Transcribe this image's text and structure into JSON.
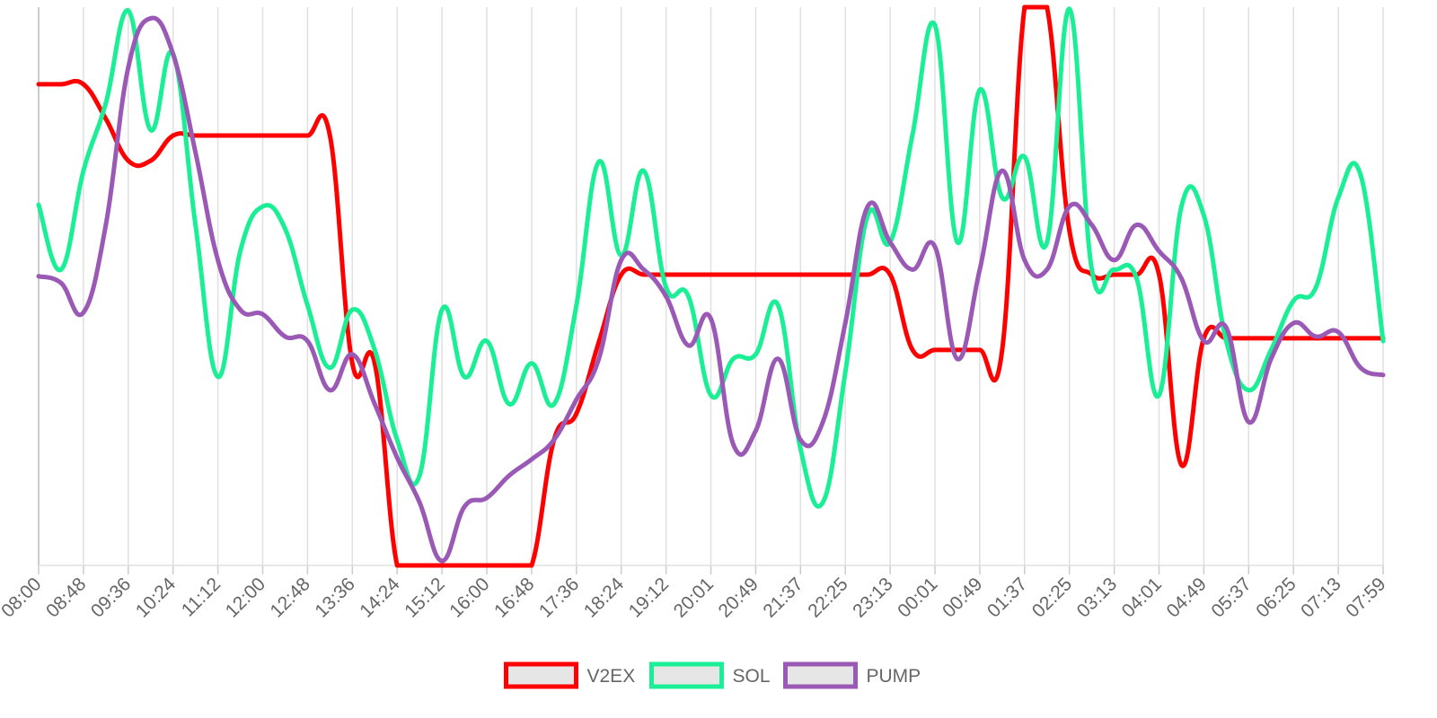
{
  "chart_data": {
    "type": "line",
    "categories": [
      "08:00",
      null,
      "08:48",
      null,
      "09:36",
      null,
      "10:24",
      null,
      "11:12",
      null,
      "12:00",
      null,
      "12:48",
      null,
      "13:36",
      null,
      "14:24",
      null,
      "15:12",
      null,
      "16:00",
      null,
      "16:48",
      null,
      "17:36",
      null,
      "18:24",
      null,
      "19:12",
      null,
      "20:01",
      null,
      "20:49",
      null,
      "21:37",
      null,
      "22:25",
      null,
      "23:13",
      null,
      "00:01",
      null,
      "00:49",
      null,
      "01:37",
      null,
      "02:25",
      null,
      "03:13",
      null,
      "04:01",
      null,
      "04:49",
      null,
      "05:37",
      null,
      "06:25",
      null,
      "07:13",
      null,
      "07:59"
    ],
    "series": [
      {
        "name": "V2EX",
        "color": "#ff0000",
        "values": [
          86.2,
          86.2,
          86.2,
          80,
          72.5,
          72.5,
          77,
          77,
          77,
          77,
          77,
          77,
          77,
          77,
          36.2,
          36.2,
          0,
          0,
          0,
          0,
          0,
          0,
          0,
          22.5,
          27.2,
          40,
          52.1,
          52.1,
          52.1,
          52.1,
          52.1,
          52.1,
          52.1,
          52.1,
          52.1,
          52.1,
          52.1,
          52.1,
          52.1,
          38.6,
          38.6,
          38.6,
          38.6,
          38.6,
          100,
          100,
          60,
          52.1,
          52.1,
          52.1,
          52.1,
          18,
          40.7,
          40.7,
          40.7,
          40.7,
          40.7,
          40.7,
          40.7,
          40.7,
          40.7
        ]
      },
      {
        "name": "SOL",
        "color": "#1aef96",
        "values": [
          64.6,
          53,
          70.7,
          82.8,
          99.4,
          78,
          91.6,
          61,
          33.8,
          56.3,
          64.3,
          60.3,
          46.6,
          35.4,
          45.8,
          38.6,
          22.5,
          16.1,
          45.8,
          33.8,
          40.2,
          28.9,
          36.2,
          28.9,
          46.6,
          72.3,
          55.5,
          70.7,
          49.8,
          48.2,
          30.5,
          37,
          37.8,
          46.6,
          20.9,
          11.3,
          34.6,
          62.7,
          57.9,
          77.2,
          96.8,
          57.9,
          85.2,
          65.9,
          73.2,
          57.9,
          99.7,
          53,
          53,
          51.4,
          30.5,
          64.3,
          62.7,
          40.2,
          31.4,
          38.6,
          47.4,
          49.8,
          65.9,
          69.9,
          40.2
        ]
      },
      {
        "name": "PUMP",
        "color": "#9b59b6",
        "values": [
          51.8,
          50.6,
          45.3,
          61,
          89.2,
          98,
          91.6,
          74,
          54.7,
          45.8,
          45,
          41,
          40.2,
          31.4,
          37.8,
          28.9,
          19.3,
          11.3,
          0.8,
          10.5,
          12.1,
          16.1,
          19,
          22.5,
          29.7,
          37,
          54.7,
          53,
          48.2,
          39.4,
          44.2,
          21.7,
          24.1,
          37,
          22.5,
          25.7,
          43.4,
          64.3,
          57.9,
          53,
          57.1,
          37,
          53,
          70.7,
          54.7,
          53,
          64.3,
          61,
          54.7,
          61,
          56.3,
          51.4,
          40.2,
          42.6,
          25.7,
          37,
          43.4,
          41,
          41.8,
          35.4,
          34.1
        ]
      }
    ],
    "ylim": [
      0,
      100
    ],
    "grid": true,
    "legend": "bottom"
  }
}
